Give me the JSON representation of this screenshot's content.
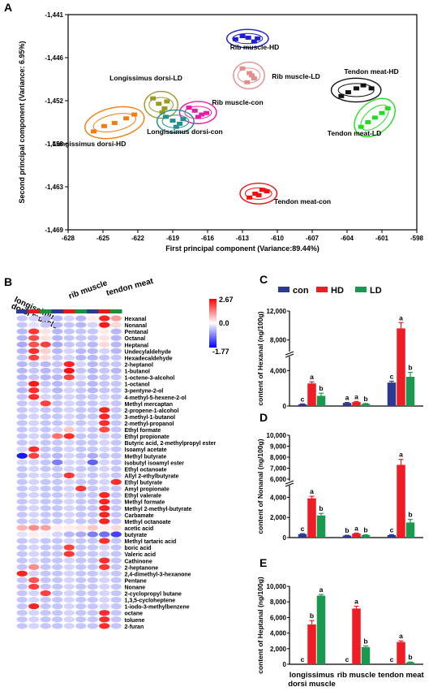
{
  "panels": {
    "A": "A",
    "B": "B",
    "C": "C",
    "D": "D",
    "E": "E"
  },
  "chart_data": [
    {
      "id": "A",
      "type": "scatter",
      "xlabel": "First principal component (Variance:89.44%)",
      "ylabel": "Second principal component (Variance: 6.95%)",
      "xlim": [
        -628,
        -598
      ],
      "ylim": [
        -1469,
        -1441
      ],
      "xticks": [
        "-628",
        "-625",
        "-622",
        "-619",
        "-616",
        "-613",
        "-610",
        "-607",
        "-604",
        "-601",
        "-598"
      ],
      "yticks": [
        "-1,441",
        "-1,446",
        "-1,452",
        "-1,458",
        "-1,463",
        "-1,469"
      ],
      "groups": [
        {
          "name": "Rib muscle-HD",
          "color": "#1f1fd1",
          "x": [
            -613.6,
            -613.0,
            -612.5,
            -612.0,
            -611.7
          ],
          "y": [
            -1444.2,
            -1443.8,
            -1444.0,
            -1444.5,
            -1444.1
          ]
        },
        {
          "name": "Rib muscle-LD",
          "color": "#e58c8c",
          "x": [
            -613.0,
            -612.4,
            -612.0,
            -612.6,
            -612.2
          ],
          "y": [
            -1448.0,
            -1448.6,
            -1449.3,
            -1449.8,
            -1448.9
          ]
        },
        {
          "name": "Tendon meat-HD",
          "color": "#111111",
          "x": [
            -604.5,
            -603.9,
            -603.2,
            -602.6,
            -601.9
          ],
          "y": [
            -1451.6,
            -1451.1,
            -1450.6,
            -1450.2,
            -1450.6
          ]
        },
        {
          "name": "Tendon meat-LD",
          "color": "#22dd22",
          "x": [
            -602.8,
            -602.2,
            -601.6,
            -601.0,
            -600.5
          ],
          "y": [
            -1455.6,
            -1455.0,
            -1454.4,
            -1453.8,
            -1453.2
          ]
        },
        {
          "name": "Longissimus dorsi-LD",
          "color": "#9a9a22",
          "x": [
            -620.7,
            -620.2,
            -619.7,
            -619.5,
            -619.9
          ],
          "y": [
            -1451.9,
            -1452.6,
            -1453.2,
            -1452.3,
            -1453.7
          ]
        },
        {
          "name": "Rib muscle-con",
          "color": "#e81ca8",
          "x": [
            -617.6,
            -617.1,
            -616.5,
            -616.1,
            -616.8
          ],
          "y": [
            -1453.1,
            -1453.5,
            -1454.0,
            -1453.8,
            -1454.3
          ]
        },
        {
          "name": "Longissimus dorsi-con",
          "color": "#1e9090",
          "x": [
            -619.6,
            -619.0,
            -618.4,
            -618.1,
            -618.7
          ],
          "y": [
            -1454.3,
            -1454.8,
            -1455.2,
            -1454.6,
            -1455.6
          ]
        },
        {
          "name": "Longissimus dorsi-HD",
          "color": "#f07d10",
          "x": [
            -625.8,
            -624.9,
            -624.0,
            -623.0,
            -622.3
          ],
          "y": [
            -1456.2,
            -1455.5,
            -1455.1,
            -1454.5,
            -1454.0
          ]
        },
        {
          "name": "Tendon meat-con",
          "color": "#ee1111",
          "x": [
            -612.4,
            -611.9,
            -611.3,
            -610.9,
            -611.6
          ],
          "y": [
            -1464.8,
            -1464.3,
            -1463.8,
            -1464.0,
            -1464.5
          ]
        }
      ]
    },
    {
      "id": "B",
      "type": "heatmap",
      "column_groups": [
        "longissimus",
        "dorsi muscle",
        "rib muscle",
        "tendon meat"
      ],
      "column_colors": [
        "#2a3a8c",
        "#e31a1c",
        "#1a8f3c",
        "#2a3a8c",
        "#e31a1c",
        "#1a8f3c",
        "#2a3a8c",
        "#e31a1c",
        "#1a8f3c"
      ],
      "scale": {
        "max": "2.67",
        "mid": "0.0",
        "min": "-1.77"
      },
      "rows": [
        "Hexanal",
        "Nonanal",
        "Pentanal",
        "Octanal",
        "Heptanal",
        "Undecylaldehyde",
        "Hexadecaldehyde",
        "2-heptanol",
        "1-butanol",
        "1-octene-3-alcohol",
        "1-octanol",
        "3-pentyne-2-ol",
        "4-methyl-5-hexene-2-ol",
        "Methyl mercaptan",
        "2-propene-1-alcohol",
        "3-methyl-1-butanol",
        "2-methyl-propanol",
        "Ethyl formate",
        "Ethyl propionate",
        "Butyric acid, 2-methylpropyl ester",
        "Isoamyl acetate",
        "Methyl butyrate",
        "Isobutyl isoamyl ester",
        "Ethyl octanoate",
        "Allyl 2-ethylbutyrate",
        "Ethyl butyrate",
        "Amyl propionate",
        "Ethyl valerate",
        "Methyl formate",
        "Methyl 2-methyl-butyrate",
        "Carbamate",
        "Methyl octanoate",
        "acetic acid",
        "butyrate",
        "Methyl tartaric acid",
        "boric acid",
        "Valeric acid",
        "Cathinone",
        "2-heptanone",
        "2,4-dimethyl-3-hexanone",
        "Pentane",
        "Nonane",
        "2-cyclopropyl butane",
        "1,3,5-cycloheptene",
        "1-iodo-3-methylbenzene",
        "octane",
        "toluene",
        "2-furan"
      ],
      "values": [
        [
          -0.4,
          -0.3,
          -0.5,
          -0.5,
          -0.3,
          -0.5,
          0.2,
          2.3,
          1.0
        ],
        [
          -0.4,
          -0.2,
          -0.4,
          -0.5,
          -0.4,
          -0.5,
          -0.3,
          2.4,
          0.4
        ],
        [
          -0.5,
          2.1,
          0.3,
          -0.5,
          -0.4,
          -0.4,
          -0.4,
          0.2,
          -0.5
        ],
        [
          -0.5,
          1.9,
          0.3,
          -0.5,
          -0.4,
          -0.4,
          -0.4,
          0.3,
          -0.5
        ],
        [
          -0.6,
          1.8,
          2.0,
          -0.6,
          -0.4,
          -0.4,
          -0.5,
          0.4,
          -0.5
        ],
        [
          -0.5,
          2.2,
          0.5,
          -0.5,
          -0.3,
          -0.5,
          -0.5,
          -0.3,
          -0.5
        ],
        [
          -0.4,
          2.0,
          0.4,
          -0.4,
          -0.3,
          -0.5,
          -0.5,
          -0.4,
          -0.4
        ],
        [
          -0.5,
          -0.4,
          -0.5,
          -0.4,
          2.3,
          -0.3,
          -0.5,
          -0.4,
          -0.4
        ],
        [
          -0.5,
          -0.4,
          -0.5,
          -0.4,
          2.5,
          -0.4,
          -0.5,
          -0.4,
          -0.5
        ],
        [
          -0.5,
          -0.4,
          -0.5,
          -0.5,
          2.0,
          -0.3,
          -0.5,
          -0.4,
          -0.4
        ],
        [
          -0.4,
          2.4,
          -0.4,
          -0.5,
          -0.3,
          -0.4,
          -0.5,
          -0.4,
          -0.4
        ],
        [
          -0.5,
          2.2,
          -0.3,
          -0.5,
          -0.3,
          -0.4,
          -0.5,
          -0.4,
          -0.4
        ],
        [
          -0.4,
          2.2,
          -0.3,
          -0.4,
          -0.3,
          -0.4,
          -0.4,
          -0.3,
          -0.4
        ],
        [
          -0.4,
          -0.3,
          2.0,
          -0.4,
          -0.3,
          -0.4,
          -0.4,
          -0.3,
          -0.4
        ],
        [
          -0.4,
          -0.3,
          -0.4,
          -0.4,
          -0.3,
          -0.4,
          -0.4,
          2.3,
          -0.4
        ],
        [
          -0.4,
          -0.3,
          -0.4,
          -0.4,
          -0.3,
          -0.4,
          -0.4,
          2.3,
          -0.4
        ],
        [
          -0.4,
          -0.3,
          -0.4,
          -0.4,
          -0.3,
          -0.4,
          -0.3,
          2.2,
          -0.4
        ],
        [
          -0.4,
          -0.3,
          -0.4,
          -0.3,
          0.6,
          -0.3,
          -0.4,
          1.9,
          -0.4
        ],
        [
          -0.4,
          -0.3,
          -0.4,
          1.5,
          2.2,
          -0.4,
          -0.4,
          -0.3,
          -0.4
        ],
        [
          -0.4,
          -0.3,
          -0.4,
          -0.4,
          -0.3,
          -0.4,
          -0.4,
          -0.3,
          -0.4
        ],
        [
          -0.3,
          2.2,
          -0.4,
          -0.4,
          -0.3,
          -0.4,
          -0.4,
          -0.3,
          -0.4
        ],
        [
          -1.6,
          2.0,
          -0.4,
          -0.5,
          -0.3,
          -0.4,
          -0.6,
          -0.4,
          -0.4
        ],
        [
          -0.3,
          -0.3,
          -0.4,
          -0.9,
          -0.3,
          -0.3,
          -1.1,
          -0.3,
          -0.4
        ],
        [
          -0.4,
          -0.3,
          -0.4,
          -0.4,
          -0.3,
          -0.4,
          -0.4,
          -0.3,
          -0.4
        ],
        [
          -0.4,
          -0.3,
          -0.3,
          -0.4,
          2.1,
          -0.3,
          -0.4,
          -0.3,
          -0.4
        ],
        [
          -0.4,
          -0.3,
          -0.4,
          -0.4,
          -0.3,
          -0.4,
          -0.4,
          -0.3,
          2.2
        ],
        [
          -0.4,
          -0.3,
          -0.4,
          -0.4,
          -0.3,
          2.1,
          -0.4,
          -0.3,
          -0.4
        ],
        [
          -0.4,
          -0.3,
          -0.4,
          -0.4,
          -0.3,
          -0.4,
          -0.4,
          2.3,
          -0.4
        ],
        [
          -0.4,
          -0.3,
          -0.4,
          -0.4,
          -0.3,
          -0.4,
          -0.4,
          2.3,
          -0.4
        ],
        [
          -0.4,
          -0.3,
          -0.4,
          -0.4,
          -0.3,
          -0.4,
          -0.4,
          2.3,
          -0.4
        ],
        [
          -0.4,
          -0.3,
          -0.4,
          -0.4,
          -0.3,
          -0.4,
          -0.4,
          2.3,
          -0.4
        ],
        [
          -0.4,
          -0.3,
          -0.4,
          -0.4,
          -0.3,
          -0.4,
          -0.4,
          2.3,
          -0.4
        ],
        [
          0.8,
          1.2,
          1.0,
          0.2,
          0.2,
          0.3,
          0.6,
          0.2,
          0.4
        ],
        [
          -0.2,
          0.2,
          -0.1,
          -0.3,
          -0.5,
          -0.6,
          -0.9,
          -1.0,
          -1.3
        ],
        [
          -0.4,
          -0.3,
          -0.4,
          -0.4,
          -0.3,
          -0.4,
          -0.4,
          2.2,
          -0.4
        ],
        [
          -0.4,
          -0.3,
          -0.4,
          -0.4,
          2.0,
          -0.4,
          -0.4,
          -0.3,
          -0.4
        ],
        [
          -0.4,
          -0.3,
          -0.4,
          -0.4,
          2.1,
          -0.4,
          -0.4,
          -0.3,
          -0.4
        ],
        [
          -0.4,
          -0.3,
          -0.4,
          -0.4,
          -0.3,
          -0.4,
          -0.4,
          2.2,
          -0.4
        ],
        [
          -0.4,
          1.2,
          -0.4,
          -0.4,
          -0.3,
          -0.4,
          -0.4,
          2.1,
          -0.4
        ],
        [
          2.3,
          -0.3,
          -0.4,
          -0.4,
          -0.3,
          -0.4,
          -0.4,
          -0.3,
          -0.4
        ],
        [
          -0.4,
          1.8,
          -0.4,
          -0.4,
          -0.3,
          -0.4,
          -0.4,
          -0.3,
          -0.4
        ],
        [
          -0.4,
          2.0,
          -0.4,
          -0.4,
          -0.3,
          -0.4,
          -0.4,
          -0.3,
          -0.4
        ],
        [
          -0.4,
          -0.3,
          2.0,
          -0.4,
          -0.3,
          -0.4,
          -0.4,
          -0.3,
          -0.4
        ],
        [
          -0.4,
          -0.3,
          -0.4,
          -0.4,
          -0.3,
          -0.4,
          -0.4,
          -0.3,
          -0.4
        ],
        [
          -0.4,
          2.3,
          -0.4,
          -0.4,
          -0.3,
          -0.4,
          -0.4,
          -0.3,
          -0.4
        ],
        [
          -0.4,
          -0.3,
          -0.4,
          -0.4,
          -0.3,
          -0.4,
          -0.4,
          2.2,
          -0.4
        ],
        [
          -0.4,
          -0.3,
          -0.4,
          -0.4,
          -0.3,
          -0.4,
          -0.4,
          2.2,
          -0.4
        ],
        [
          -0.4,
          -0.3,
          -0.4,
          -0.4,
          -0.3,
          -0.4,
          -0.4,
          2.2,
          -0.4
        ]
      ]
    },
    {
      "id": "C",
      "type": "bar",
      "ylabel": "content of Hexanal (ng/100g)",
      "categories": [
        "longissimus dorsi muscle",
        "rib muscle",
        "tendon meat"
      ],
      "legend": [
        "con",
        "HD",
        "LD"
      ],
      "colors": [
        "#2b3990",
        "#ee1c24",
        "#1a9850"
      ],
      "yticks_lower": [
        "0",
        "4,000"
      ],
      "yticks_upper": [
        "8,000",
        "12,000"
      ],
      "break_at": [
        5500,
        6500
      ],
      "series": [
        {
          "name": "con",
          "values": [
            200,
            350,
            2650
          ],
          "err": [
            40,
            50,
            150
          ],
          "letters": [
            "c",
            "a",
            "c"
          ]
        },
        {
          "name": "HD",
          "values": [
            2550,
            450,
            9600
          ],
          "err": [
            180,
            60,
            800
          ],
          "letters": [
            "a",
            "a",
            "a"
          ]
        },
        {
          "name": "LD",
          "values": [
            1150,
            250,
            3300
          ],
          "err": [
            300,
            40,
            500
          ],
          "letters": [
            "b",
            "b",
            "b"
          ]
        }
      ]
    },
    {
      "id": "D",
      "type": "bar",
      "ylabel": "content of Nonanal (ng/100g)",
      "categories": [
        "longissimus dorsi muscle",
        "rib muscle",
        "tendon meat"
      ],
      "colors": [
        "#2b3990",
        "#ee1c24",
        "#1a9850"
      ],
      "yticks_lower": [
        "0",
        "2,000",
        "4,000"
      ],
      "yticks_upper": [
        "6,000",
        "7,000",
        "8,000",
        "9,000",
        "10,000"
      ],
      "break_at": [
        5000,
        6000
      ],
      "series": [
        {
          "name": "con",
          "values": [
            350,
            200,
            250
          ],
          "err": [
            40,
            30,
            40
          ],
          "letters": [
            "c",
            "b",
            "c"
          ]
        },
        {
          "name": "HD",
          "values": [
            3900,
            400,
            7300
          ],
          "err": [
            200,
            50,
            500
          ],
          "letters": [
            "a",
            "a",
            "a"
          ]
        },
        {
          "name": "LD",
          "values": [
            2200,
            250,
            1500
          ],
          "err": [
            200,
            30,
            300
          ],
          "letters": [
            "b",
            "b",
            "b"
          ]
        }
      ]
    },
    {
      "id": "E",
      "type": "bar",
      "ylabel": "content of Heptanal (ng/100g)",
      "categories": [
        "longissimus dorsi muscle",
        "rib muscle",
        "tendon meat"
      ],
      "xlabels": [
        [
          "longissimus",
          "dorsi muscle"
        ],
        [
          "rib muscle"
        ],
        [
          "tendon meat"
        ]
      ],
      "colors": [
        "#2b3990",
        "#ee1c24",
        "#1a9850"
      ],
      "ylim": [
        0,
        10000
      ],
      "yticks": [
        "0",
        "2,000",
        "4,000",
        "6,000",
        "8,000",
        "10,000"
      ],
      "series": [
        {
          "name": "con",
          "values": [
            0,
            0,
            0
          ],
          "err": [
            0,
            0,
            0
          ],
          "letters": [
            "c",
            "c",
            "c"
          ]
        },
        {
          "name": "HD",
          "values": [
            5100,
            7150,
            2850
          ],
          "err": [
            500,
            300,
            150
          ],
          "letters": [
            "b",
            "a",
            "a"
          ]
        },
        {
          "name": "LD",
          "values": [
            8800,
            2200,
            250
          ],
          "err": [
            150,
            150,
            40
          ],
          "letters": [
            "a",
            "b",
            "b"
          ]
        }
      ]
    }
  ]
}
